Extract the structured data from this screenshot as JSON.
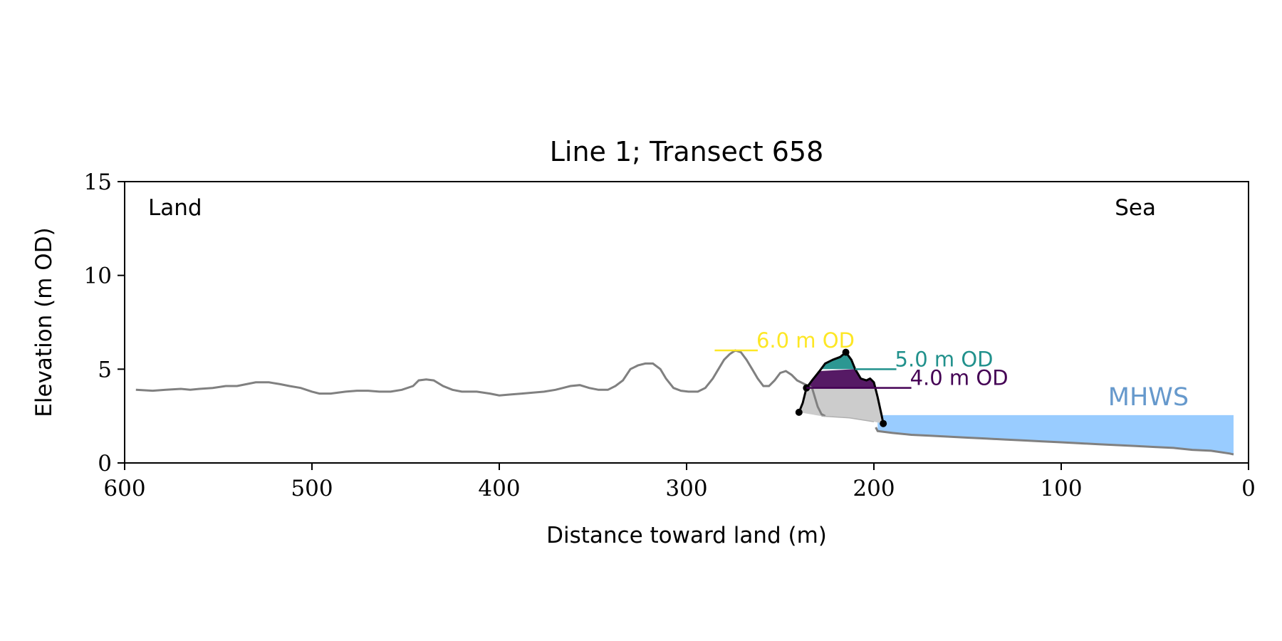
{
  "chart_data": {
    "type": "line",
    "title": "Line 1; Transect 658",
    "xlabel": "Distance toward land (m)",
    "ylabel": "Elevation (m OD)",
    "xlim": [
      600,
      0
    ],
    "ylim": [
      0,
      15
    ],
    "x_ticks": [
      600,
      500,
      400,
      300,
      200,
      100,
      0
    ],
    "y_ticks": [
      0,
      5,
      10,
      15
    ],
    "grid": false,
    "corner_labels": {
      "left": "Land",
      "right": "Sea"
    },
    "profile_color": "#808080",
    "profile": [
      [
        594,
        3.9
      ],
      [
        585,
        3.85
      ],
      [
        578,
        3.9
      ],
      [
        570,
        3.95
      ],
      [
        565,
        3.9
      ],
      [
        560,
        3.95
      ],
      [
        553,
        4.0
      ],
      [
        546,
        4.1
      ],
      [
        540,
        4.1
      ],
      [
        535,
        4.2
      ],
      [
        530,
        4.3
      ],
      [
        523,
        4.3
      ],
      [
        517,
        4.2
      ],
      [
        512,
        4.1
      ],
      [
        506,
        4.0
      ],
      [
        500,
        3.8
      ],
      [
        496,
        3.7
      ],
      [
        490,
        3.7
      ],
      [
        482,
        3.8
      ],
      [
        476,
        3.85
      ],
      [
        470,
        3.85
      ],
      [
        464,
        3.8
      ],
      [
        458,
        3.8
      ],
      [
        452,
        3.9
      ],
      [
        446,
        4.1
      ],
      [
        443,
        4.4
      ],
      [
        439,
        4.45
      ],
      [
        435,
        4.4
      ],
      [
        430,
        4.1
      ],
      [
        425,
        3.9
      ],
      [
        420,
        3.8
      ],
      [
        412,
        3.8
      ],
      [
        405,
        3.7
      ],
      [
        400,
        3.6
      ],
      [
        394,
        3.65
      ],
      [
        388,
        3.7
      ],
      [
        382,
        3.75
      ],
      [
        376,
        3.8
      ],
      [
        370,
        3.9
      ],
      [
        366,
        4.0
      ],
      [
        362,
        4.1
      ],
      [
        357,
        4.15
      ],
      [
        352,
        4.0
      ],
      [
        347,
        3.9
      ],
      [
        342,
        3.9
      ],
      [
        338,
        4.1
      ],
      [
        334,
        4.4
      ],
      [
        330,
        5.0
      ],
      [
        326,
        5.2
      ],
      [
        322,
        5.3
      ],
      [
        318,
        5.3
      ],
      [
        314,
        5.0
      ],
      [
        311,
        4.5
      ],
      [
        307,
        4.0
      ],
      [
        303,
        3.85
      ],
      [
        299,
        3.8
      ],
      [
        294,
        3.8
      ],
      [
        290,
        4.0
      ],
      [
        286,
        4.5
      ],
      [
        283,
        5.0
      ],
      [
        280,
        5.5
      ],
      [
        277,
        5.8
      ],
      [
        274,
        6.0
      ],
      [
        271,
        5.9
      ],
      [
        268,
        5.5
      ],
      [
        265,
        5.0
      ],
      [
        262,
        4.5
      ],
      [
        259,
        4.1
      ],
      [
        256,
        4.1
      ],
      [
        253,
        4.4
      ],
      [
        250,
        4.8
      ],
      [
        247,
        4.9
      ],
      [
        244,
        4.7
      ],
      [
        241,
        4.4
      ],
      [
        237,
        4.2
      ],
      [
        233,
        4.0
      ],
      [
        230,
        3.0
      ],
      [
        228,
        2.6
      ],
      [
        226,
        2.5
      ]
    ],
    "dune_face": [
      [
        228,
        2.5
      ],
      [
        213,
        2.4
      ],
      [
        200,
        2.2
      ]
    ],
    "nearshore": [
      [
        199,
        1.9
      ],
      [
        198,
        1.7
      ],
      [
        190,
        1.6
      ],
      [
        180,
        1.5
      ],
      [
        170,
        1.45
      ],
      [
        160,
        1.4
      ],
      [
        150,
        1.35
      ],
      [
        140,
        1.3
      ],
      [
        130,
        1.25
      ],
      [
        120,
        1.2
      ],
      [
        110,
        1.15
      ],
      [
        100,
        1.1
      ],
      [
        90,
        1.05
      ],
      [
        80,
        1.0
      ],
      [
        70,
        0.95
      ],
      [
        60,
        0.9
      ],
      [
        50,
        0.85
      ],
      [
        40,
        0.8
      ],
      [
        30,
        0.7
      ],
      [
        20,
        0.65
      ],
      [
        10,
        0.5
      ],
      [
        8,
        0.45
      ]
    ],
    "dune_outline_color": "#000000",
    "dune_outline": [
      [
        240,
        2.7
      ],
      [
        238,
        3.2
      ],
      [
        236,
        4.0
      ],
      [
        233,
        4.4
      ],
      [
        229,
        4.9
      ],
      [
        226,
        5.3
      ],
      [
        222,
        5.5
      ],
      [
        218,
        5.65
      ],
      [
        215,
        5.9
      ],
      [
        212,
        5.5
      ],
      [
        210,
        5.0
      ],
      [
        207,
        4.5
      ],
      [
        204,
        4.4
      ],
      [
        202,
        4.5
      ],
      [
        200,
        4.3
      ],
      [
        198,
        3.5
      ],
      [
        196,
        2.6
      ],
      [
        195,
        2.1
      ]
    ],
    "dune_points": [
      [
        240,
        2.7
      ],
      [
        236,
        4.0
      ],
      [
        215,
        5.9
      ],
      [
        195,
        2.1
      ]
    ],
    "dune_base_fill": "#cccccc",
    "levels": [
      {
        "label": "6.0 m OD",
        "value": 6.0,
        "color": "#fde725",
        "x_start": 285,
        "x_end": 262
      },
      {
        "label": "5.0 m OD",
        "value": 5.0,
        "color": "#21918c",
        "x_start": 210,
        "x_end": 188
      },
      {
        "label": "4.0 m OD",
        "value": 4.0,
        "color": "#440154",
        "x_start": 236,
        "x_end": 180
      }
    ],
    "mhws": {
      "label": "MHWS",
      "value": 2.55,
      "color": "#99ccff",
      "label_color": "#6699cc",
      "x_start": 198,
      "x_end": 8
    }
  }
}
